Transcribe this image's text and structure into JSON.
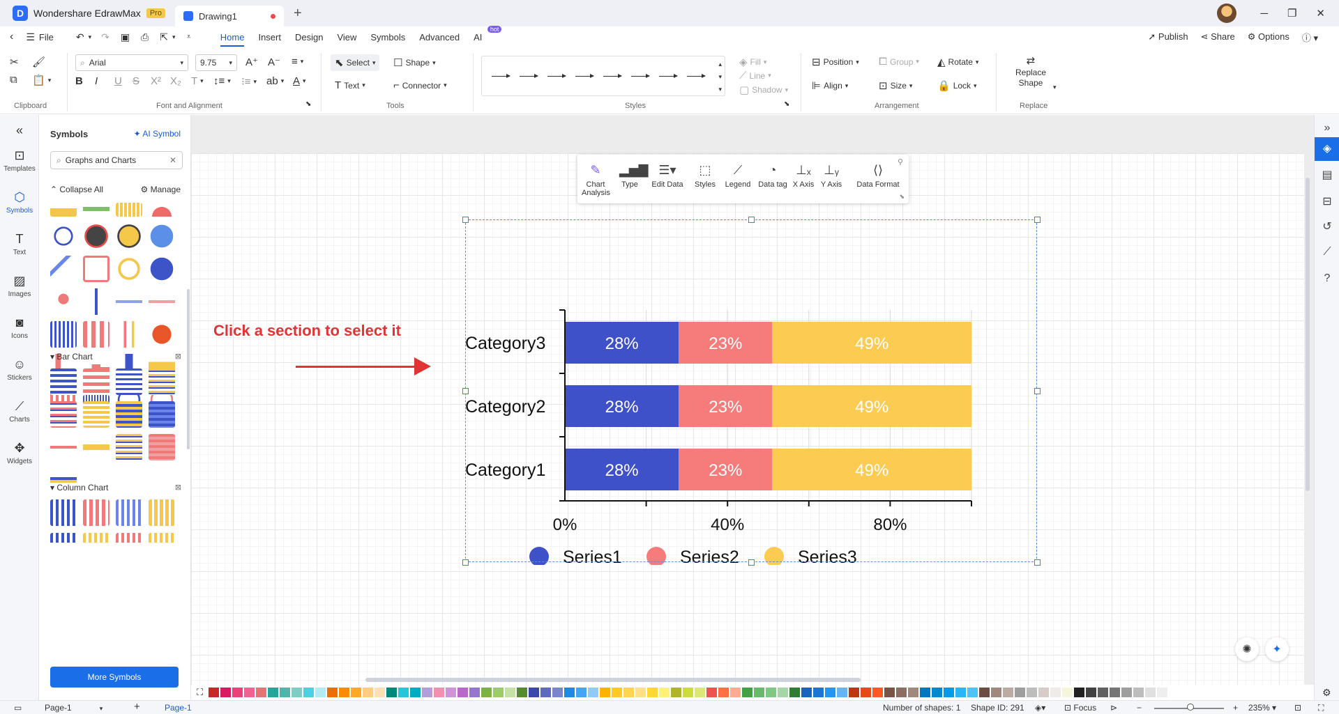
{
  "titlebar": {
    "app_name": "Wondershare EdrawMax",
    "pro_badge": "Pro",
    "doc_tab": "Drawing1",
    "new_tab": "+"
  },
  "menu": {
    "file": "File",
    "items": [
      "Home",
      "Insert",
      "Design",
      "View",
      "Symbols",
      "Advanced",
      "AI"
    ],
    "ai_badge": "hot",
    "publish": "Publish",
    "share": "Share",
    "options": "Options"
  },
  "ribbon": {
    "font_name": "Arial",
    "font_size": "9.75",
    "select": "Select",
    "shape": "Shape",
    "text": "Text",
    "connector": "Connector",
    "fill": "Fill",
    "line": "Line",
    "shadow": "Shadow",
    "position": "Position",
    "group": "Group",
    "rotate": "Rotate",
    "align": "Align",
    "size": "Size",
    "lock": "Lock",
    "replace_shape_1": "Replace",
    "replace_shape_2": "Shape",
    "groups": {
      "clipboard": "Clipboard",
      "font": "Font and Alignment",
      "tools": "Tools",
      "styles": "Styles",
      "arrangement": "Arrangement",
      "replace": "Replace"
    }
  },
  "rail": [
    "Templates",
    "Symbols",
    "Text",
    "Images",
    "Icons",
    "Stickers",
    "Charts",
    "Widgets"
  ],
  "panel": {
    "title": "Symbols",
    "ai_symbol": "AI Symbol",
    "search_value": "Graphs and Charts",
    "collapse_all": "Collapse All",
    "manage": "Manage",
    "section_bar": "Bar Chart",
    "section_column": "Column Chart",
    "more_symbols": "More Symbols"
  },
  "canvas": {
    "hint": "Click a section to select it"
  },
  "chart_toolbar": [
    {
      "label1": "Chart",
      "label2": "Analysis"
    },
    {
      "label1": "Type",
      "label2": ""
    },
    {
      "label1": "Edit Data",
      "label2": ""
    },
    {
      "label1": "Styles",
      "label2": ""
    },
    {
      "label1": "Legend",
      "label2": ""
    },
    {
      "label1": "Data tag",
      "label2": ""
    },
    {
      "label1": "X Axis",
      "label2": ""
    },
    {
      "label1": "Y Axis",
      "label2": ""
    },
    {
      "label1": "Data Format",
      "label2": ""
    }
  ],
  "chart_data": {
    "type": "bar",
    "orientation": "horizontal",
    "stacked": true,
    "categories": [
      "Category3",
      "Category2",
      "Category1"
    ],
    "series": [
      {
        "name": "Series1",
        "values": [
          28,
          28,
          28
        ],
        "color": "#3f51c8"
      },
      {
        "name": "Series2",
        "values": [
          23,
          23,
          23
        ],
        "color": "#f67c7c"
      },
      {
        "name": "Series3",
        "values": [
          49,
          49,
          49
        ],
        "color": "#fccb52"
      }
    ],
    "data_labels": [
      "28%",
      "23%",
      "49%"
    ],
    "xticks": [
      "0%",
      "40%",
      "80%"
    ],
    "xlim": [
      0,
      100
    ],
    "legend_position": "bottom",
    "grid": true
  },
  "status": {
    "page_select": "Page-1",
    "page_tab": "Page-1",
    "shapes": "Number of shapes: 1",
    "shape_id": "Shape ID: 291",
    "focus": "Focus",
    "zoom": "235%"
  },
  "palette": [
    "#c62828",
    "#d81b60",
    "#ec407a",
    "#f06292",
    "#e57373",
    "#26a69a",
    "#4db6ac",
    "#80cbc4",
    "#4dd0e1",
    "#b2ebf2",
    "#ef6c00",
    "#fb8c00",
    "#ffa726",
    "#ffcc80",
    "#ffe0b2",
    "#00897b",
    "#26c6da",
    "#00acc1",
    "#b39ddb",
    "#f48fb1",
    "#ce93d8",
    "#ba68c8",
    "#9575cd",
    "#7cb342",
    "#9ccc65",
    "#c5e1a5",
    "#558b2f",
    "#3949ab",
    "#5c6bc0",
    "#7986cb",
    "#1e88e5",
    "#42a5f5",
    "#90caf9",
    "#ffb300",
    "#ffca28",
    "#ffd54f",
    "#ffe082",
    "#fdd835",
    "#fff176",
    "#afb42b",
    "#cddc39",
    "#dce775",
    "#ef5350",
    "#ff7043",
    "#ffab91",
    "#43a047",
    "#66bb6a",
    "#81c784",
    "#a5d6a7",
    "#2e7d32",
    "#1565c0",
    "#1976d2",
    "#2196f3",
    "#64b5f6",
    "#bf360c",
    "#e64a19",
    "#ff5722",
    "#795548",
    "#8d6e63",
    "#a1887f",
    "#0277bd",
    "#0288d1",
    "#039be5",
    "#29b6f6",
    "#4fc3f7",
    "#6d4c41",
    "#a1887f",
    "#bcaaa4",
    "#9e9e9e",
    "#bdbdbd",
    "#d7ccc8",
    "#efebe9",
    "#f5f5dc",
    "#212121",
    "#424242",
    "#616161",
    "#757575",
    "#9e9e9e",
    "#bdbdbd",
    "#e0e0e0",
    "#eeeeee"
  ]
}
